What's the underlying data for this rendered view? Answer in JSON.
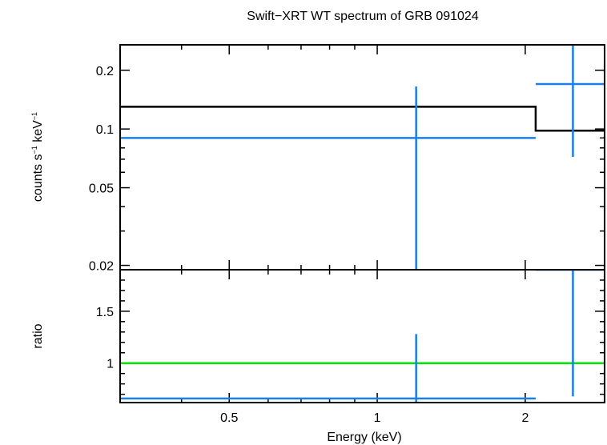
{
  "chart_data": {
    "type": "scatter",
    "title": "Swift−XRT WT spectrum of GRB 091024",
    "xlabel": "Energy (keV)",
    "x_scale": "log",
    "xlim": [
      0.3,
      2.9
    ],
    "x_ticks": [
      {
        "value": 0.5,
        "label": "0.5"
      },
      {
        "value": 1,
        "label": "1"
      },
      {
        "value": 2,
        "label": "2"
      }
    ],
    "panels": [
      {
        "id": "spectrum",
        "ylabel_main": "counts s",
        "ylabel_sup1": "−1",
        "ylabel_mid": " keV",
        "ylabel_sup2": "−1",
        "y_scale": "log",
        "ylim": [
          0.019,
          0.27
        ],
        "y_ticks": [
          {
            "value": 0.02,
            "label": "0.02"
          },
          {
            "value": 0.05,
            "label": "0.05"
          },
          {
            "value": 0.1,
            "label": "0.1"
          },
          {
            "value": 0.2,
            "label": "0.2"
          }
        ],
        "data": {
          "color": "#1a7fe6",
          "points": [
            {
              "x_low": 0.3,
              "x_high": 2.1,
              "x": 1.2,
              "y": 0.09,
              "y_low": 0.019,
              "y_high": 0.165
            },
            {
              "x_low": 2.1,
              "x_high": 2.9,
              "x": 2.5,
              "y": 0.17,
              "y_low": 0.072,
              "y_high": 0.27
            }
          ]
        },
        "model": {
          "color": "#000000",
          "steps": [
            {
              "x_low": 0.3,
              "x_high": 2.1,
              "y": 0.13
            },
            {
              "x_low": 2.1,
              "x_high": 2.9,
              "y": 0.098
            }
          ]
        }
      },
      {
        "id": "ratio",
        "ylabel": "ratio",
        "y_scale": "linear",
        "ylim": [
          0.62,
          1.9
        ],
        "y_ticks": [
          {
            "value": 1,
            "label": "1"
          },
          {
            "value": 1.5,
            "label": "1.5"
          }
        ],
        "reference": {
          "y": 1,
          "color": "#00e600"
        },
        "data": {
          "color": "#1a7fe6",
          "points": [
            {
              "x_low": 0.3,
              "x_high": 2.1,
              "x": 1.2,
              "y": 0.66,
              "y_low": 0.62,
              "y_high": 1.28
            },
            {
              "x_low": 2.1,
              "x_high": 2.9,
              "x": 2.5,
              "y": 1.9,
              "y_low": 0.68,
              "y_high": 1.9
            }
          ]
        }
      }
    ]
  }
}
